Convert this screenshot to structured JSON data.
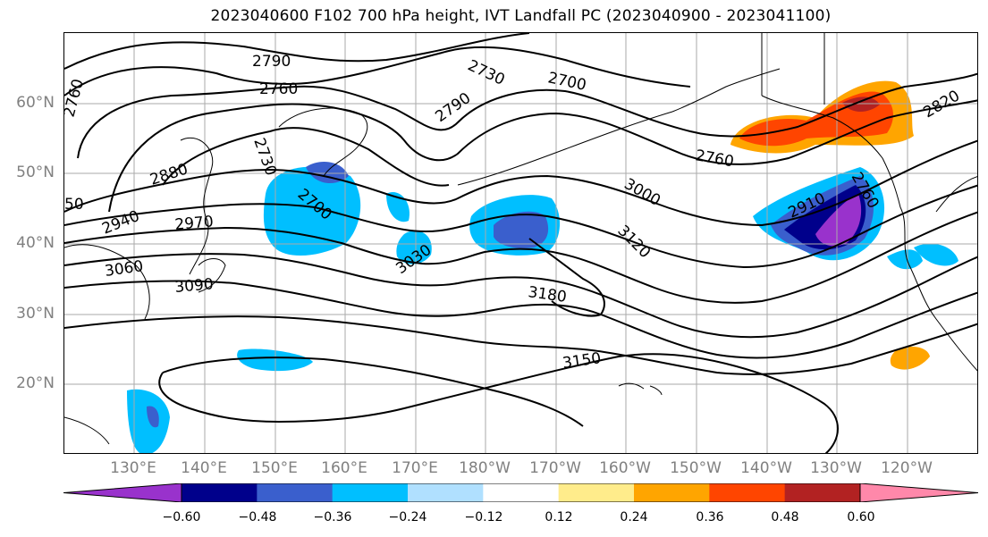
{
  "title": "2023040600 F102 700 hPa height, IVT Landfall PC (2023040900 - 2023041100)",
  "lat_labels": [
    "60°N",
    "50°N",
    "40°N",
    "30°N",
    "20°N"
  ],
  "lon_labels": [
    "130°E",
    "140°E",
    "150°E",
    "160°E",
    "170°E",
    "180°W",
    "170°W",
    "160°W",
    "150°W",
    "140°W",
    "130°W",
    "120°W"
  ],
  "contour_labels": [
    "2790",
    "2760",
    "2730",
    "2700",
    "2820",
    "2760",
    "2760",
    "2790",
    "2730",
    "2880",
    "2700",
    "50",
    "2940",
    "2970",
    "3060",
    "3090",
    "3030",
    "3000",
    "3120",
    "3180",
    "3150",
    "2910",
    "2760"
  ],
  "colorbar": {
    "colors": [
      "#9932cc",
      "#00008b",
      "#3a5fcd",
      "#00bfff",
      "#b0e0ff",
      "#ffffff",
      "#ffec8b",
      "#ffa500",
      "#ff4500",
      "#b22222",
      "#ff88aa"
    ],
    "tick_labels": [
      "−0.60",
      "−0.48",
      "−0.36",
      "−0.24",
      "−0.12",
      "0.12",
      "0.24",
      "0.36",
      "0.48",
      "0.60"
    ]
  }
}
